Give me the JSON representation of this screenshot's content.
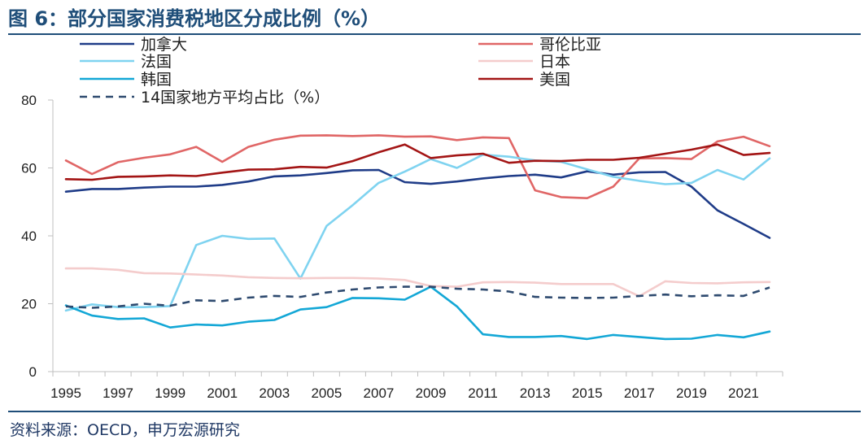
{
  "header": {
    "title": "图 6：部分国家消费税地区分成比例（%）"
  },
  "footer": {
    "source": "资料来源：OECD，申万宏源研究"
  },
  "chart_data": {
    "type": "line",
    "title": "部分国家消费税地区分成比例（%）",
    "xlabel": "",
    "ylabel": "",
    "ylim": [
      0,
      80
    ],
    "yticks": [
      0,
      20,
      40,
      60,
      80
    ],
    "xticks": [
      1995,
      1997,
      1999,
      2001,
      2003,
      2005,
      2007,
      2009,
      2011,
      2013,
      2015,
      2017,
      2019,
      2021
    ],
    "x": [
      1995,
      1996,
      1997,
      1998,
      1999,
      2000,
      2001,
      2002,
      2003,
      2004,
      2005,
      2006,
      2007,
      2008,
      2009,
      2010,
      2011,
      2012,
      2013,
      2014,
      2015,
      2016,
      2017,
      2018,
      2019,
      2020,
      2021,
      2022
    ],
    "grid": false,
    "legend_position": "top",
    "series": [
      {
        "name": "加拿大",
        "color": "#1f3c88",
        "dash": "solid",
        "values": [
          53,
          53.8,
          53.8,
          54.2,
          54.5,
          54.5,
          55.0,
          56.0,
          57.5,
          57.8,
          58.5,
          59.3,
          59.4,
          55.8,
          55.3,
          56.0,
          56.9,
          57.6,
          58.0,
          57.2,
          59.0,
          58.0,
          58.7,
          58.8,
          54.5,
          47.5,
          43.5,
          39.4
        ]
      },
      {
        "name": "哥伦比亚",
        "color": "#e06666",
        "dash": "solid",
        "values": [
          62.2,
          58.2,
          61.7,
          63.0,
          64.0,
          66.2,
          61.8,
          66.2,
          68.3,
          69.5,
          69.6,
          69.4,
          69.6,
          69.2,
          69.3,
          68.2,
          69.0,
          68.8,
          53.4,
          51.4,
          51.1,
          54.5,
          62.8,
          62.9,
          62.6,
          67.8,
          69.2,
          66.4
        ]
      },
      {
        "name": "法国",
        "color": "#7fd3f0",
        "dash": "solid",
        "values": [
          18.0,
          19.8,
          19.0,
          19.0,
          19.3,
          37.3,
          40.0,
          39.1,
          39.2,
          27.4,
          42.9,
          49.0,
          55.6,
          58.9,
          62.6,
          60.0,
          63.9,
          63.3,
          62.2,
          61.8,
          59.6,
          57.4,
          56.2,
          55.2,
          55.6,
          59.4,
          56.6,
          62.8
        ]
      },
      {
        "name": "日本",
        "color": "#f4cccc",
        "dash": "solid",
        "values": [
          30.4,
          30.4,
          30.0,
          29.0,
          28.9,
          28.6,
          28.3,
          27.8,
          27.6,
          27.5,
          27.6,
          27.6,
          27.4,
          27.0,
          25.2,
          25.0,
          26.3,
          26.4,
          26.2,
          25.8,
          25.8,
          25.8,
          22.2,
          26.6,
          26.1,
          26.0,
          26.3,
          26.4
        ]
      },
      {
        "name": "美国",
        "color": "#a31515",
        "dash": "solid",
        "values": [
          56.7,
          56.5,
          57.4,
          57.5,
          57.8,
          57.6,
          58.6,
          59.5,
          59.6,
          60.3,
          60.1,
          62.0,
          64.6,
          66.9,
          62.9,
          63.7,
          64.2,
          61.5,
          62.1,
          62.0,
          62.4,
          62.4,
          63.0,
          64.2,
          65.4,
          66.9,
          63.8,
          64.4
        ]
      },
      {
        "name": "韩国",
        "color": "#13a7d6",
        "dash": "solid",
        "values": [
          19.5,
          16.5,
          15.5,
          15.7,
          13.0,
          13.9,
          13.6,
          14.7,
          15.2,
          18.3,
          19.0,
          21.7,
          21.6,
          21.2,
          25.0,
          19.2,
          11.0,
          10.2,
          10.2,
          10.5,
          9.6,
          10.8,
          10.2,
          9.6,
          9.7,
          10.8,
          10.1,
          11.8
        ]
      },
      {
        "name": "14国家地方平均占比（%）",
        "color": "#2e4a6f",
        "dash": "dashed",
        "values": [
          19.2,
          18.8,
          19.2,
          20.0,
          19.4,
          21.0,
          20.8,
          21.8,
          22.3,
          22.0,
          23.3,
          24.2,
          24.8,
          25.0,
          25.0,
          24.4,
          24.2,
          23.6,
          22.0,
          21.8,
          21.7,
          21.8,
          22.3,
          22.7,
          22.2,
          22.5,
          22.3,
          24.8
        ]
      }
    ]
  }
}
